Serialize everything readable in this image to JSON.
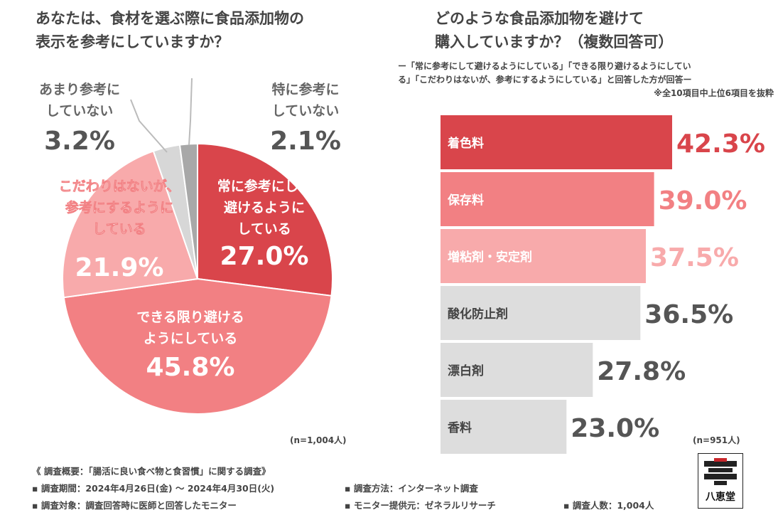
{
  "left_title": [
    "あなたは、食材を選ぶ際に食品添加物の",
    "表示を参考にしていますか？"
  ],
  "right_title": [
    "どのような食品添加物を避けて",
    "購入していますか？（複数回答可）"
  ],
  "right_note": [
    "ー「常に参考にして避けるようにしている」「できる限り避けるようにしてい",
    "る」「こだわりはないが、参考にするようにしている」と回答した方が回答ー",
    "※全10項目中上位6項目を抜粋"
  ],
  "pie_n": "(n=1,004人)",
  "bar_n": "(n=951人)",
  "chart_data": [
    {
      "type": "pie",
      "title": "あなたは、食材を選ぶ際に食品添加物の表示を参考にしていますか？",
      "slices": [
        {
          "label_lines": [
            "常に参考にして",
            "避けるように",
            "している"
          ],
          "value": 27.0,
          "value_text": "27.0%",
          "color": "#d9454b"
        },
        {
          "label_lines": [
            "できる限り避ける",
            "ようにしている"
          ],
          "value": 45.8,
          "value_text": "45.8%",
          "color": "#f28083"
        },
        {
          "label_lines": [
            "こだわりはないが、",
            "参考にするように",
            "している"
          ],
          "value": 21.9,
          "value_text": "21.9%",
          "color": "#f8aaab"
        },
        {
          "label_lines": [
            "あまり参考に",
            "していない"
          ],
          "value": 3.2,
          "value_text": "3.2%",
          "color": "#d7d7d7"
        },
        {
          "label_lines": [
            "特に参考に",
            "していない"
          ],
          "value": 2.1,
          "value_text": "2.1%",
          "color": "#a8a8a8"
        }
      ]
    },
    {
      "type": "bar",
      "orientation": "horizontal",
      "title": "どのような食品添加物を避けて購入していますか？（複数回答可）",
      "categories": [
        "着色料",
        "保存料",
        "増粘剤・安定剤",
        "酸化防止剤",
        "漂白剤",
        "香料"
      ],
      "values": [
        42.3,
        39.0,
        37.5,
        36.5,
        27.8,
        23.0
      ],
      "value_texts": [
        "42.3%",
        "39.0%",
        "37.5%",
        "36.5%",
        "27.8%",
        "23.0%"
      ],
      "bar_colors": [
        "#d9454b",
        "#f28083",
        "#f8aaab",
        "#dddddd",
        "#dddddd",
        "#dddddd"
      ],
      "label_colors": [
        "#ffffff",
        "#ffffff",
        "#ffffff",
        "#444444",
        "#444444",
        "#444444"
      ],
      "value_colors": [
        "#d9454b",
        "#f28083",
        "#f8aaab",
        "#555555",
        "#555555",
        "#555555"
      ]
    }
  ],
  "footer": {
    "heading": "《 調査概要：「腸活に良い食べ物と食習慣」に関する調査》",
    "period": "▪ 調査期間：2024年4月26日(金) 〜 2024年4月30日(火)",
    "method": "▪ 調査方法：インターネット調査",
    "target": "▪ 調査対象：調査回答時に医師と回答したモニター",
    "provider": "▪ モニター提供元：ゼネラルリサーチ",
    "count": "▪ 調査人数：1,004人"
  },
  "logo_text": "八恵堂"
}
